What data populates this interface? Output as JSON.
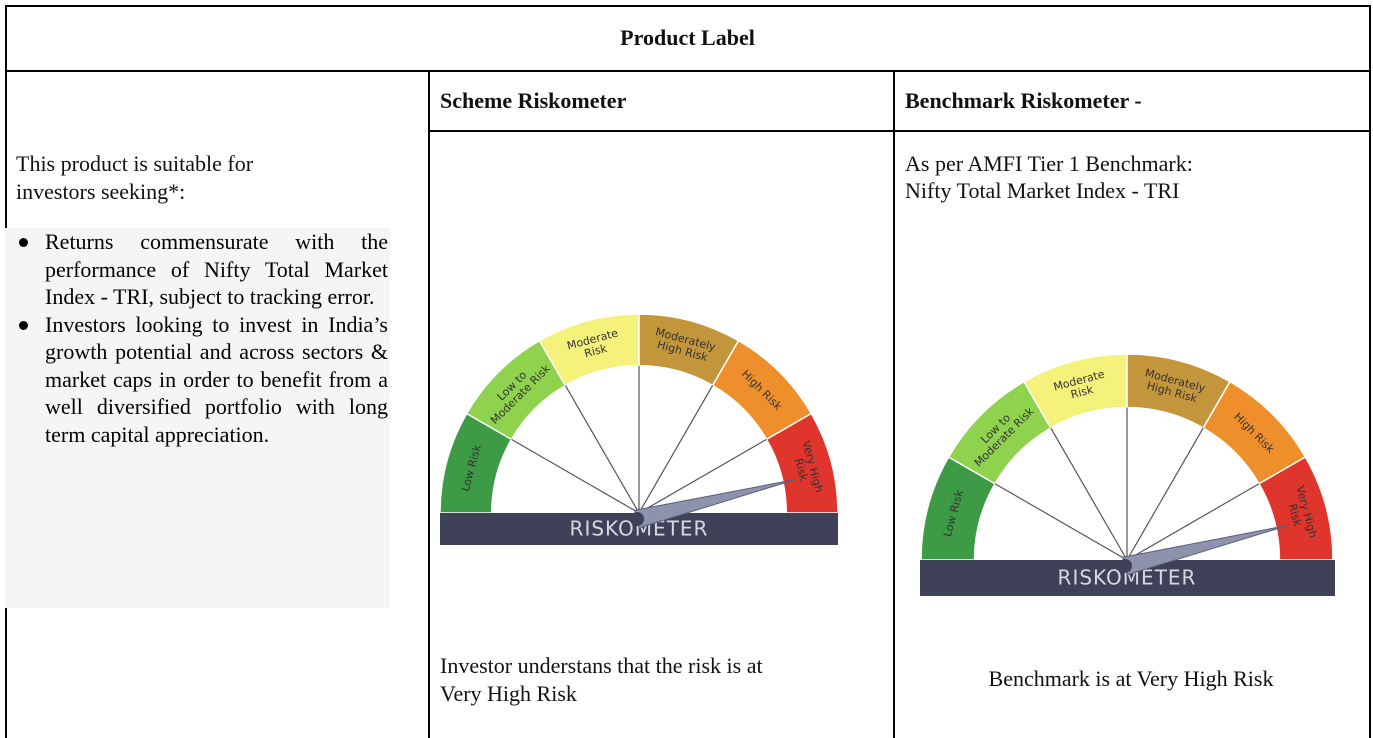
{
  "header": {
    "title": "Product Label"
  },
  "suitability": {
    "intro": "This product is suitable for investors seeking*:",
    "bullets": [
      "Returns commensurate with the performance of Nifty Total Market Index - TRI, subject to tracking error.",
      "Investors looking to invest in India’s growth potential and across sectors & market caps in order to benefit from a well diversified portfolio with long term capital appreciation."
    ]
  },
  "scheme": {
    "heading": "Scheme Riskometer",
    "caption": "Investor understans that the risk is at Very High Risk"
  },
  "benchmark": {
    "heading": "Benchmark Riskometer -",
    "note_lines": [
      "As per AMFI Tier 1 Benchmark:",
      "Nifty Total Market Index - TRI"
    ],
    "caption": "Benchmark is at Very High Risk"
  },
  "riskometer": {
    "caption": "RISKOMETER",
    "segments": [
      {
        "lines": [
          "Low Risk"
        ],
        "color": "#3d9b46"
      },
      {
        "lines": [
          "Low to",
          "Moderate Risk"
        ],
        "color": "#8fd24e"
      },
      {
        "lines": [
          "Moderate",
          "Risk"
        ],
        "color": "#f5f27c"
      },
      {
        "lines": [
          "Moderately",
          "High Risk"
        ],
        "color": "#c4963c"
      },
      {
        "lines": [
          "High Risk"
        ],
        "color": "#ef8f2c"
      },
      {
        "lines": [
          "Very High",
          "Risk"
        ],
        "color": "#e0352c"
      }
    ]
  }
}
